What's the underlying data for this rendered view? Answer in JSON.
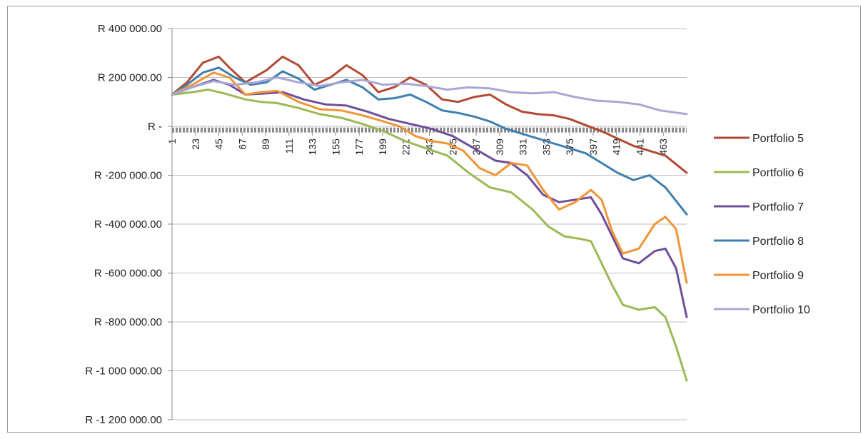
{
  "chart_data": {
    "type": "line",
    "title": "",
    "xlabel": "",
    "ylabel": "",
    "ylim": [
      -1200000,
      400000
    ],
    "xlim": [
      1,
      485
    ],
    "y_ticks": [
      400000,
      200000,
      0,
      -200000,
      -400000,
      -600000,
      -800000,
      -1000000,
      -1200000
    ],
    "y_tick_labels": [
      "R 400 000.00",
      "R 200 000.00",
      "R -",
      "R -200 000.00",
      "R -400 000.00",
      "R -600 000.00",
      "R -800 000.00",
      "R -1 000 000.00",
      "R -1 200 000.00"
    ],
    "x_ticks": [
      1,
      23,
      45,
      67,
      89,
      111,
      133,
      155,
      177,
      199,
      221,
      243,
      265,
      287,
      309,
      331,
      353,
      375,
      397,
      419,
      441,
      463
    ],
    "x_tick_labels": [
      "1",
      "23",
      "45",
      "67",
      "89",
      "111",
      "133",
      "155",
      "177",
      "199",
      "221",
      "243",
      "265",
      "287",
      "309",
      "331",
      "353",
      "375",
      "397",
      "419",
      "441",
      "463"
    ],
    "grid": true,
    "legend_position": "right",
    "series": [
      {
        "name": "Portfolio 5",
        "color": "#b24a33",
        "x": [
          1,
          15,
          30,
          45,
          55,
          70,
          90,
          105,
          120,
          135,
          150,
          165,
          180,
          195,
          210,
          225,
          240,
          255,
          270,
          285,
          300,
          315,
          330,
          345,
          360,
          375,
          390,
          405,
          420,
          435,
          450,
          465,
          485
        ],
        "y": [
          130000,
          180000,
          260000,
          285000,
          240000,
          180000,
          230000,
          285000,
          250000,
          170000,
          200000,
          250000,
          210000,
          140000,
          160000,
          200000,
          170000,
          110000,
          100000,
          120000,
          130000,
          90000,
          60000,
          50000,
          45000,
          30000,
          5000,
          -20000,
          -50000,
          -80000,
          -100000,
          -120000,
          -190000
        ]
      },
      {
        "name": "Portfolio 6",
        "color": "#9bb955",
        "x": [
          1,
          20,
          35,
          50,
          70,
          85,
          100,
          120,
          140,
          160,
          180,
          200,
          220,
          240,
          260,
          280,
          300,
          320,
          340,
          355,
          370,
          385,
          395,
          405,
          415,
          425,
          440,
          455,
          465,
          475,
          485
        ],
        "y": [
          130000,
          140000,
          150000,
          135000,
          110000,
          100000,
          95000,
          75000,
          50000,
          35000,
          10000,
          -20000,
          -60000,
          -90000,
          -120000,
          -190000,
          -250000,
          -270000,
          -340000,
          -410000,
          -450000,
          -460000,
          -470000,
          -560000,
          -650000,
          -730000,
          -750000,
          -740000,
          -780000,
          -900000,
          -1040000
        ]
      },
      {
        "name": "Portfolio 7",
        "color": "#6f4e9a",
        "x": [
          1,
          20,
          40,
          55,
          70,
          90,
          105,
          125,
          145,
          165,
          185,
          205,
          225,
          245,
          265,
          285,
          305,
          320,
          335,
          350,
          365,
          380,
          395,
          405,
          415,
          425,
          440,
          455,
          465,
          475,
          485
        ],
        "y": [
          130000,
          160000,
          190000,
          170000,
          130000,
          135000,
          140000,
          110000,
          90000,
          85000,
          60000,
          30000,
          10000,
          -10000,
          -40000,
          -90000,
          -140000,
          -150000,
          -200000,
          -280000,
          -310000,
          -300000,
          -290000,
          -360000,
          -450000,
          -540000,
          -560000,
          -510000,
          -500000,
          -580000,
          -780000
        ]
      },
      {
        "name": "Portfolio 8",
        "color": "#3f7fb0",
        "x": [
          1,
          15,
          30,
          45,
          60,
          75,
          90,
          105,
          120,
          135,
          150,
          165,
          180,
          195,
          210,
          225,
          240,
          255,
          270,
          285,
          300,
          315,
          330,
          345,
          360,
          375,
          390,
          405,
          420,
          435,
          450,
          465,
          485
        ],
        "y": [
          130000,
          170000,
          220000,
          240000,
          200000,
          170000,
          180000,
          225000,
          195000,
          150000,
          170000,
          190000,
          160000,
          110000,
          115000,
          130000,
          100000,
          65000,
          55000,
          40000,
          20000,
          -10000,
          -30000,
          -50000,
          -70000,
          -90000,
          -110000,
          -150000,
          -190000,
          -220000,
          -200000,
          -250000,
          -360000
        ]
      },
      {
        "name": "Portfolio 9",
        "color": "#f29435",
        "x": [
          1,
          20,
          40,
          55,
          70,
          85,
          100,
          120,
          140,
          160,
          180,
          200,
          215,
          230,
          245,
          260,
          275,
          290,
          305,
          320,
          335,
          350,
          365,
          380,
          395,
          405,
          415,
          425,
          440,
          455,
          465,
          475,
          485
        ],
        "y": [
          130000,
          170000,
          220000,
          200000,
          130000,
          140000,
          145000,
          100000,
          70000,
          65000,
          45000,
          20000,
          0,
          -40000,
          -60000,
          -70000,
          -100000,
          -170000,
          -200000,
          -150000,
          -160000,
          -260000,
          -340000,
          -310000,
          -260000,
          -300000,
          -430000,
          -520000,
          -500000,
          -400000,
          -370000,
          -420000,
          -640000
        ]
      },
      {
        "name": "Portfolio 10",
        "color": "#a9a6d6",
        "x": [
          1,
          20,
          40,
          60,
          80,
          100,
          120,
          140,
          160,
          180,
          200,
          220,
          240,
          260,
          280,
          300,
          320,
          340,
          360,
          380,
          400,
          420,
          440,
          460,
          485
        ],
        "y": [
          130000,
          160000,
          185000,
          170000,
          180000,
          200000,
          180000,
          165000,
          180000,
          190000,
          170000,
          175000,
          165000,
          150000,
          160000,
          155000,
          140000,
          135000,
          140000,
          120000,
          105000,
          100000,
          90000,
          65000,
          50000
        ]
      }
    ],
    "zero_line": {
      "y": -15000,
      "color": "#8a8a8a",
      "style": "dashed"
    }
  }
}
